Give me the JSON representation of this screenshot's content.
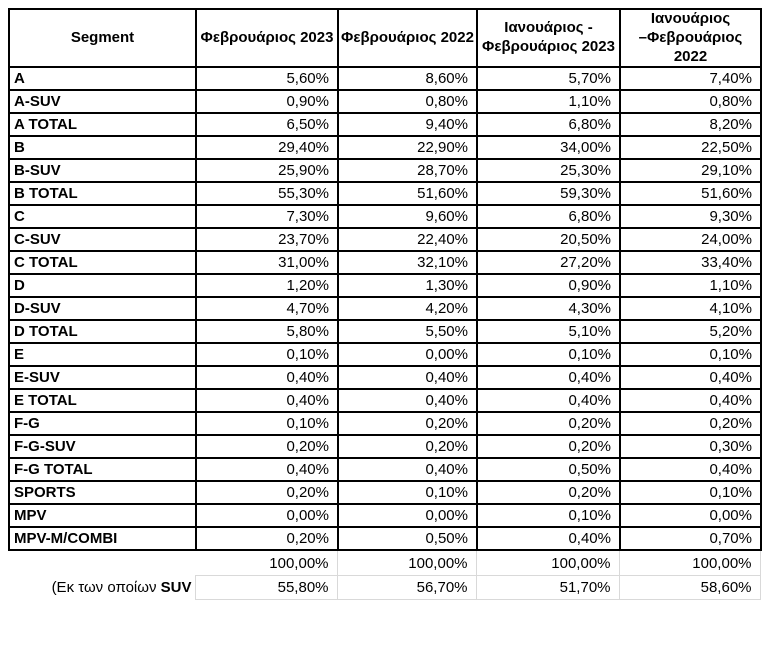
{
  "chart_data": {
    "type": "table",
    "columns": [
      "Segment",
      "Φεβρουάριος 2023",
      "Φεβρουάριος 2022",
      "Ιανουάριος -\nΦεβρουάριος 2023",
      "Ιανουάριος\n–Φεβρουάριος 2022"
    ],
    "rows": [
      {
        "segment": "A",
        "values": [
          "5,60%",
          "8,60%",
          "5,70%",
          "7,40%"
        ]
      },
      {
        "segment": "A-SUV",
        "values": [
          "0,90%",
          "0,80%",
          "1,10%",
          "0,80%"
        ]
      },
      {
        "segment": "A TOTAL",
        "values": [
          "6,50%",
          "9,40%",
          "6,80%",
          "8,20%"
        ]
      },
      {
        "segment": "B",
        "values": [
          "29,40%",
          "22,90%",
          "34,00%",
          "22,50%"
        ]
      },
      {
        "segment": "B-SUV",
        "values": [
          "25,90%",
          "28,70%",
          "25,30%",
          "29,10%"
        ]
      },
      {
        "segment": "B TOTAL",
        "values": [
          "55,30%",
          "51,60%",
          "59,30%",
          "51,60%"
        ]
      },
      {
        "segment": "C",
        "values": [
          "7,30%",
          "9,60%",
          "6,80%",
          "9,30%"
        ]
      },
      {
        "segment": "C-SUV",
        "values": [
          "23,70%",
          "22,40%",
          "20,50%",
          "24,00%"
        ]
      },
      {
        "segment": "C TOTAL",
        "values": [
          "31,00%",
          "32,10%",
          "27,20%",
          "33,40%"
        ]
      },
      {
        "segment": "D",
        "values": [
          "1,20%",
          "1,30%",
          "0,90%",
          "1,10%"
        ]
      },
      {
        "segment": "D-SUV",
        "values": [
          "4,70%",
          "4,20%",
          "4,30%",
          "4,10%"
        ]
      },
      {
        "segment": "D TOTAL",
        "values": [
          "5,80%",
          "5,50%",
          "5,10%",
          "5,20%"
        ]
      },
      {
        "segment": "E",
        "values": [
          "0,10%",
          "0,00%",
          "0,10%",
          "0,10%"
        ]
      },
      {
        "segment": "E-SUV",
        "values": [
          "0,40%",
          "0,40%",
          "0,40%",
          "0,40%"
        ]
      },
      {
        "segment": "E TOTAL",
        "values": [
          "0,40%",
          "0,40%",
          "0,40%",
          "0,40%"
        ]
      },
      {
        "segment": "F-G",
        "values": [
          "0,10%",
          "0,20%",
          "0,20%",
          "0,20%"
        ]
      },
      {
        "segment": "F-G-SUV",
        "values": [
          "0,20%",
          "0,20%",
          "0,20%",
          "0,30%"
        ]
      },
      {
        "segment": "F-G TOTAL",
        "values": [
          "0,40%",
          "0,40%",
          "0,50%",
          "0,40%"
        ]
      },
      {
        "segment": "SPORTS",
        "values": [
          "0,20%",
          "0,10%",
          "0,20%",
          "0,10%"
        ]
      },
      {
        "segment": "MPV",
        "values": [
          "0,00%",
          "0,00%",
          "0,10%",
          "0,00%"
        ]
      },
      {
        "segment": "MPV-M/COMBI",
        "values": [
          "0,20%",
          "0,50%",
          "0,40%",
          "0,70%"
        ]
      }
    ],
    "total_row": [
      "100,00%",
      "100,00%",
      "100,00%",
      "100,00%"
    ],
    "suv_row": {
      "label_regular": "(Εκ των οποίων ",
      "label_bold": "SUV",
      "values": [
        "55,80%",
        "56,70%",
        "51,70%",
        "58,60%"
      ]
    },
    "grid_color": "#000000",
    "footer_grid_color": "#d9d9d9"
  }
}
